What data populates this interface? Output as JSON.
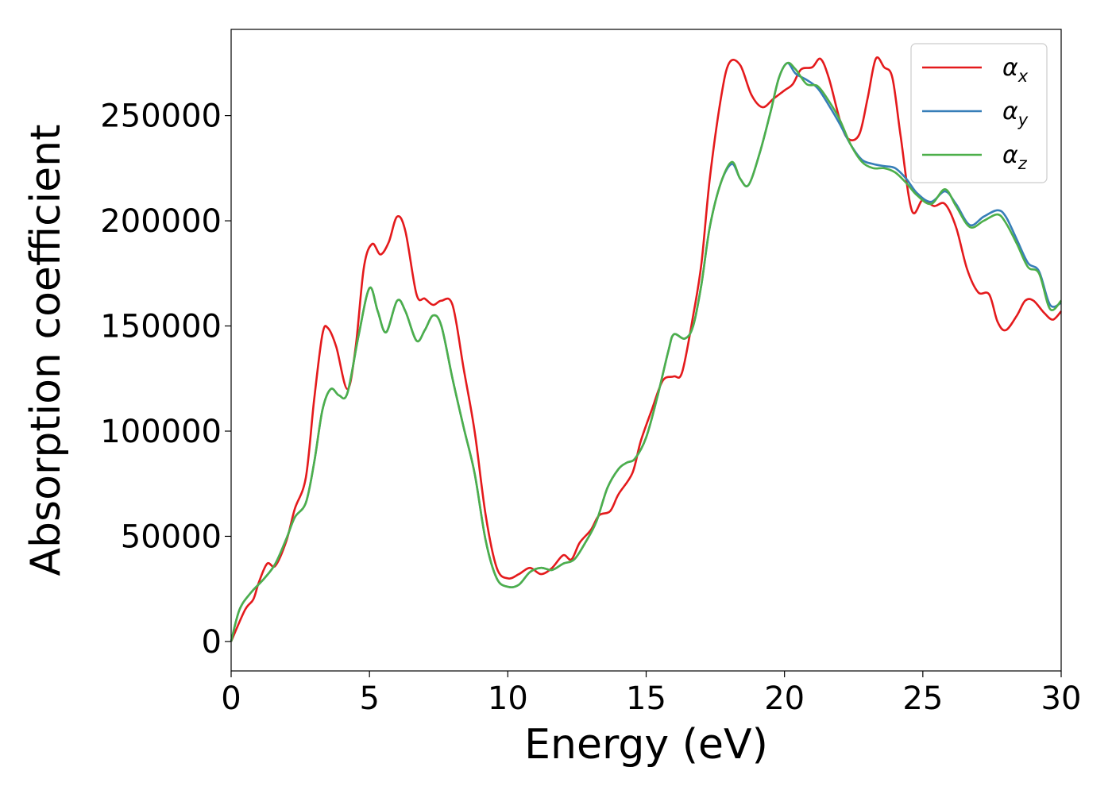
{
  "chart_data": {
    "type": "line",
    "xlabel": "Energy (eV)",
    "ylabel": "Absorption coefficient",
    "xlim": [
      0,
      30
    ],
    "ylim": [
      -14000,
      291000
    ],
    "x_ticks": [
      0,
      5,
      10,
      15,
      20,
      25,
      30
    ],
    "x_tick_labels": [
      "0",
      "5",
      "10",
      "15",
      "20",
      "25",
      "30"
    ],
    "y_ticks": [
      0,
      50000,
      100000,
      150000,
      200000,
      250000
    ],
    "y_tick_labels": [
      "0",
      "50000",
      "100000",
      "150000",
      "200000",
      "250000"
    ],
    "grid": false,
    "legend_position": "top-right",
    "series": [
      {
        "name": "αx",
        "symbol": "α",
        "subscript": "x",
        "color": "#e41a1c",
        "points": [
          [
            0,
            0
          ],
          [
            0.5,
            15000
          ],
          [
            0.8,
            20000
          ],
          [
            1.0,
            28000
          ],
          [
            1.3,
            37000
          ],
          [
            1.6,
            36000
          ],
          [
            2.0,
            48000
          ],
          [
            2.3,
            63000
          ],
          [
            2.7,
            78000
          ],
          [
            3.0,
            115000
          ],
          [
            3.3,
            146000
          ],
          [
            3.5,
            149000
          ],
          [
            3.8,
            140000
          ],
          [
            4.2,
            120000
          ],
          [
            4.5,
            140000
          ],
          [
            4.8,
            178000
          ],
          [
            5.1,
            189000
          ],
          [
            5.4,
            184000
          ],
          [
            5.7,
            190000
          ],
          [
            6.0,
            202000
          ],
          [
            6.3,
            195000
          ],
          [
            6.7,
            165000
          ],
          [
            7.0,
            163000
          ],
          [
            7.3,
            160000
          ],
          [
            7.6,
            162000
          ],
          [
            8.0,
            160000
          ],
          [
            8.4,
            130000
          ],
          [
            8.8,
            100000
          ],
          [
            9.2,
            60000
          ],
          [
            9.6,
            35000
          ],
          [
            10.0,
            30000
          ],
          [
            10.4,
            32000
          ],
          [
            10.8,
            35000
          ],
          [
            11.2,
            32000
          ],
          [
            11.6,
            35000
          ],
          [
            12.0,
            41000
          ],
          [
            12.3,
            39000
          ],
          [
            12.6,
            47000
          ],
          [
            13.0,
            53000
          ],
          [
            13.3,
            60000
          ],
          [
            13.7,
            62000
          ],
          [
            14.0,
            70000
          ],
          [
            14.5,
            80000
          ],
          [
            14.8,
            95000
          ],
          [
            15.2,
            110000
          ],
          [
            15.6,
            124000
          ],
          [
            16.0,
            126000
          ],
          [
            16.3,
            128000
          ],
          [
            16.7,
            155000
          ],
          [
            17.0,
            180000
          ],
          [
            17.3,
            220000
          ],
          [
            17.7,
            258000
          ],
          [
            18.0,
            275000
          ],
          [
            18.4,
            274000
          ],
          [
            18.8,
            260000
          ],
          [
            19.2,
            254000
          ],
          [
            19.6,
            258000
          ],
          [
            20.0,
            262000
          ],
          [
            20.3,
            265000
          ],
          [
            20.6,
            272000
          ],
          [
            21.0,
            273000
          ],
          [
            21.3,
            277000
          ],
          [
            21.6,
            268000
          ],
          [
            22.0,
            248000
          ],
          [
            22.3,
            239000
          ],
          [
            22.7,
            241000
          ],
          [
            23.0,
            258000
          ],
          [
            23.3,
            277000
          ],
          [
            23.6,
            273000
          ],
          [
            23.9,
            268000
          ],
          [
            24.2,
            240000
          ],
          [
            24.6,
            205000
          ],
          [
            25.0,
            210000
          ],
          [
            25.4,
            207000
          ],
          [
            25.8,
            208000
          ],
          [
            26.2,
            197000
          ],
          [
            26.6,
            177000
          ],
          [
            27.0,
            166000
          ],
          [
            27.4,
            165000
          ],
          [
            27.7,
            152000
          ],
          [
            28.0,
            148000
          ],
          [
            28.4,
            155000
          ],
          [
            28.7,
            162000
          ],
          [
            29.0,
            162000
          ],
          [
            29.4,
            156000
          ],
          [
            29.7,
            153000
          ],
          [
            30.0,
            157000
          ]
        ]
      },
      {
        "name": "αy",
        "symbol": "α",
        "subscript": "y",
        "color": "#377eb8",
        "points": [
          [
            0,
            0
          ],
          [
            0.3,
            15000
          ],
          [
            0.7,
            23000
          ],
          [
            1.2,
            30000
          ],
          [
            1.6,
            37000
          ],
          [
            2.0,
            49000
          ],
          [
            2.3,
            59000
          ],
          [
            2.7,
            66000
          ],
          [
            3.0,
            85000
          ],
          [
            3.3,
            110000
          ],
          [
            3.6,
            120000
          ],
          [
            3.9,
            117000
          ],
          [
            4.2,
            118000
          ],
          [
            4.6,
            145000
          ],
          [
            5.0,
            168000
          ],
          [
            5.3,
            157000
          ],
          [
            5.6,
            147000
          ],
          [
            6.0,
            162000
          ],
          [
            6.3,
            157000
          ],
          [
            6.7,
            143000
          ],
          [
            7.0,
            148000
          ],
          [
            7.3,
            155000
          ],
          [
            7.6,
            150000
          ],
          [
            8.0,
            125000
          ],
          [
            8.4,
            102000
          ],
          [
            8.8,
            80000
          ],
          [
            9.2,
            48000
          ],
          [
            9.6,
            30000
          ],
          [
            10.0,
            26000
          ],
          [
            10.4,
            27000
          ],
          [
            10.8,
            33000
          ],
          [
            11.2,
            35000
          ],
          [
            11.6,
            34000
          ],
          [
            12.0,
            37000
          ],
          [
            12.4,
            39000
          ],
          [
            12.8,
            47000
          ],
          [
            13.2,
            57000
          ],
          [
            13.6,
            73000
          ],
          [
            14.0,
            82000
          ],
          [
            14.3,
            85000
          ],
          [
            14.6,
            87000
          ],
          [
            15.0,
            97000
          ],
          [
            15.4,
            116000
          ],
          [
            15.8,
            138000
          ],
          [
            16.0,
            146000
          ],
          [
            16.4,
            144000
          ],
          [
            16.7,
            150000
          ],
          [
            17.0,
            170000
          ],
          [
            17.3,
            197000
          ],
          [
            17.7,
            218000
          ],
          [
            18.1,
            227000
          ],
          [
            18.4,
            220000
          ],
          [
            18.7,
            217000
          ],
          [
            19.1,
            232000
          ],
          [
            19.5,
            252000
          ],
          [
            19.8,
            268000
          ],
          [
            20.1,
            275000
          ],
          [
            20.4,
            270000
          ],
          [
            20.8,
            267000
          ],
          [
            21.2,
            263000
          ],
          [
            21.6,
            255000
          ],
          [
            22.0,
            246000
          ],
          [
            22.4,
            236000
          ],
          [
            22.8,
            229000
          ],
          [
            23.2,
            227000
          ],
          [
            23.6,
            226000
          ],
          [
            24.0,
            225000
          ],
          [
            24.4,
            220000
          ],
          [
            24.8,
            213000
          ],
          [
            25.3,
            209000
          ],
          [
            25.8,
            214000
          ],
          [
            26.2,
            208000
          ],
          [
            26.7,
            198000
          ],
          [
            27.2,
            202000
          ],
          [
            27.7,
            205000
          ],
          [
            28.0,
            202000
          ],
          [
            28.4,
            191000
          ],
          [
            28.8,
            180000
          ],
          [
            29.2,
            176000
          ],
          [
            29.6,
            160000
          ],
          [
            30.0,
            161000
          ]
        ]
      },
      {
        "name": "αz",
        "symbol": "α",
        "subscript": "z",
        "color": "#4daf4a",
        "points": [
          [
            0,
            0
          ],
          [
            0.3,
            15000
          ],
          [
            0.7,
            23000
          ],
          [
            1.2,
            30000
          ],
          [
            1.6,
            37000
          ],
          [
            2.0,
            49000
          ],
          [
            2.3,
            59000
          ],
          [
            2.7,
            66000
          ],
          [
            3.0,
            85000
          ],
          [
            3.3,
            110000
          ],
          [
            3.6,
            120000
          ],
          [
            3.9,
            117000
          ],
          [
            4.2,
            118000
          ],
          [
            4.6,
            145000
          ],
          [
            5.0,
            168000
          ],
          [
            5.3,
            157000
          ],
          [
            5.6,
            147000
          ],
          [
            6.0,
            162000
          ],
          [
            6.3,
            157000
          ],
          [
            6.7,
            143000
          ],
          [
            7.0,
            148000
          ],
          [
            7.3,
            155000
          ],
          [
            7.6,
            150000
          ],
          [
            8.0,
            125000
          ],
          [
            8.4,
            102000
          ],
          [
            8.8,
            80000
          ],
          [
            9.2,
            48000
          ],
          [
            9.6,
            30000
          ],
          [
            10.0,
            26000
          ],
          [
            10.4,
            27000
          ],
          [
            10.8,
            33000
          ],
          [
            11.2,
            35000
          ],
          [
            11.6,
            34000
          ],
          [
            12.0,
            37000
          ],
          [
            12.4,
            39000
          ],
          [
            12.8,
            47000
          ],
          [
            13.2,
            57000
          ],
          [
            13.6,
            73000
          ],
          [
            14.0,
            82000
          ],
          [
            14.3,
            85000
          ],
          [
            14.6,
            87000
          ],
          [
            15.0,
            97000
          ],
          [
            15.4,
            116000
          ],
          [
            15.8,
            138000
          ],
          [
            16.0,
            146000
          ],
          [
            16.4,
            144000
          ],
          [
            16.7,
            150000
          ],
          [
            17.0,
            170000
          ],
          [
            17.3,
            197000
          ],
          [
            17.7,
            218000
          ],
          [
            18.1,
            228000
          ],
          [
            18.4,
            220000
          ],
          [
            18.7,
            217000
          ],
          [
            19.1,
            232000
          ],
          [
            19.5,
            252000
          ],
          [
            19.8,
            268000
          ],
          [
            20.1,
            275000
          ],
          [
            20.4,
            272000
          ],
          [
            20.8,
            265000
          ],
          [
            21.2,
            264000
          ],
          [
            21.6,
            257000
          ],
          [
            22.0,
            248000
          ],
          [
            22.4,
            236000
          ],
          [
            22.8,
            228000
          ],
          [
            23.2,
            225000
          ],
          [
            23.6,
            225000
          ],
          [
            24.0,
            223000
          ],
          [
            24.4,
            218000
          ],
          [
            24.8,
            212000
          ],
          [
            25.3,
            208000
          ],
          [
            25.8,
            215000
          ],
          [
            26.2,
            207000
          ],
          [
            26.7,
            197000
          ],
          [
            27.2,
            200000
          ],
          [
            27.7,
            203000
          ],
          [
            28.0,
            199000
          ],
          [
            28.4,
            189000
          ],
          [
            28.8,
            178000
          ],
          [
            29.2,
            175000
          ],
          [
            29.6,
            158000
          ],
          [
            30.0,
            162000
          ]
        ]
      }
    ]
  }
}
